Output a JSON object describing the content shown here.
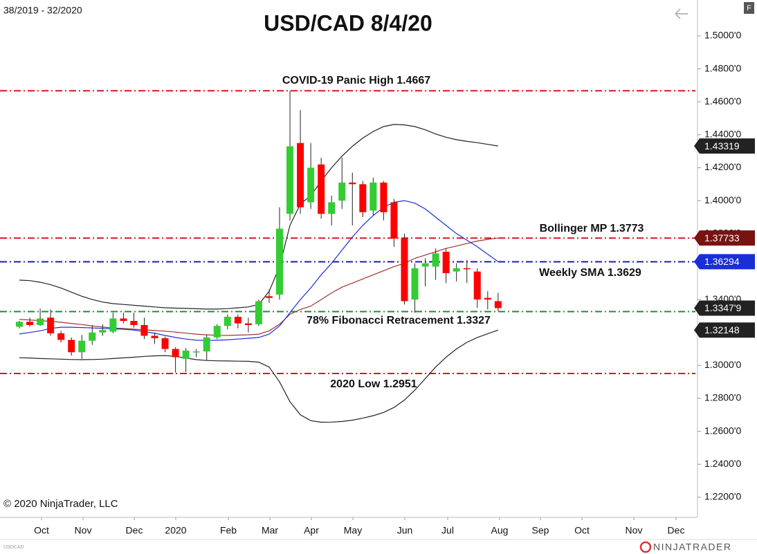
{
  "chart_data": {
    "type": "candlestick",
    "title": "USD/CAD 8/4/20",
    "subtitle": "38/2019 - 32/2020",
    "up_color": "#33cc33",
    "down_color": "#ff0000",
    "open": [
      1.3235,
      1.3265,
      1.3245,
      1.329,
      1.3195,
      1.3155,
      1.308,
      1.315,
      1.32,
      1.3205,
      1.3285,
      1.327,
      1.3245,
      1.318,
      1.3165,
      1.31,
      1.304,
      1.308,
      1.3085,
      1.317,
      1.324,
      1.3295,
      1.3255,
      1.325,
      1.342,
      1.343,
      1.392,
      1.435,
      1.399,
      1.422,
      1.392,
      1.4,
      1.411,
      1.41,
      1.394,
      1.411,
      1.399,
      1.377,
      1.34,
      1.36,
      1.36,
      1.369,
      1.357,
      1.359,
      1.357,
      1.341,
      1.339
    ],
    "high": [
      1.327,
      1.329,
      1.3345,
      1.334,
      1.321,
      1.317,
      1.3185,
      1.3245,
      1.325,
      1.332,
      1.332,
      1.332,
      1.329,
      1.32,
      1.3175,
      1.311,
      1.3105,
      1.31,
      1.3185,
      1.325,
      1.331,
      1.331,
      1.329,
      1.34,
      1.346,
      1.396,
      1.4667,
      1.455,
      1.435,
      1.426,
      1.403,
      1.426,
      1.417,
      1.412,
      1.414,
      1.412,
      1.401,
      1.38,
      1.362,
      1.365,
      1.371,
      1.371,
      1.362,
      1.364,
      1.359,
      1.345,
      1.344
    ],
    "low": [
      1.3225,
      1.3235,
      1.324,
      1.318,
      1.314,
      1.306,
      1.304,
      1.3125,
      1.318,
      1.3195,
      1.3255,
      1.323,
      1.316,
      1.313,
      1.308,
      1.2957,
      1.296,
      1.305,
      1.303,
      1.316,
      1.322,
      1.3225,
      1.32,
      1.324,
      1.338,
      1.34,
      1.388,
      1.392,
      1.395,
      1.389,
      1.385,
      1.395,
      1.385,
      1.39,
      1.391,
      1.388,
      1.372,
      1.337,
      1.332,
      1.348,
      1.352,
      1.35,
      1.351,
      1.35,
      1.335,
      1.334,
      1.333
    ],
    "close": [
      1.3265,
      1.3245,
      1.3285,
      1.3195,
      1.3155,
      1.308,
      1.315,
      1.32,
      1.3215,
      1.3285,
      1.327,
      1.3245,
      1.318,
      1.3165,
      1.31,
      1.305,
      1.309,
      1.3085,
      1.317,
      1.324,
      1.3295,
      1.3255,
      1.3245,
      1.339,
      1.341,
      1.383,
      1.433,
      1.396,
      1.42,
      1.392,
      1.399,
      1.411,
      1.41,
      1.393,
      1.411,
      1.393,
      1.377,
      1.339,
      1.359,
      1.362,
      1.368,
      1.356,
      1.359,
      1.3585,
      1.34,
      1.34,
      1.33479
    ],
    "overlays": [
      {
        "color": "#222222",
        "values": [
          1.3518,
          1.3515,
          1.3505,
          1.349,
          1.347,
          1.3445,
          1.342,
          1.34,
          1.3385,
          1.3375,
          1.337,
          1.3365,
          1.336,
          1.3355,
          1.335,
          1.3348,
          1.3346,
          1.3344,
          1.3342,
          1.3342,
          1.3345,
          1.335,
          1.3355,
          1.337,
          1.345,
          1.36,
          1.385,
          1.398,
          1.403,
          1.412,
          1.42,
          1.427,
          1.433,
          1.438,
          1.442,
          1.445,
          1.4463,
          1.446,
          1.445,
          1.443,
          1.4405,
          1.4385,
          1.437,
          1.436,
          1.4352,
          1.4342,
          1.43319
        ]
      },
      {
        "color": "#222222",
        "values": [
          1.3047,
          1.3045,
          1.3042,
          1.304,
          1.3038,
          1.3036,
          1.3035,
          1.3036,
          1.3038,
          1.3042,
          1.3046,
          1.305,
          1.3055,
          1.3058,
          1.306,
          1.3055,
          1.3045,
          1.3035,
          1.303,
          1.3028,
          1.3027,
          1.3026,
          1.3025,
          1.302,
          1.299,
          1.29,
          1.278,
          1.27,
          1.2665,
          1.2655,
          1.2656,
          1.266,
          1.2668,
          1.268,
          1.2695,
          1.2715,
          1.2745,
          1.279,
          1.285,
          1.292,
          1.299,
          1.305,
          1.31,
          1.314,
          1.317,
          1.3192,
          1.32148
        ]
      },
      {
        "color": "#a0322a",
        "values": [
          1.3279,
          1.3276,
          1.3272,
          1.3268,
          1.3262,
          1.3255,
          1.3248,
          1.324,
          1.3233,
          1.3228,
          1.3224,
          1.322,
          1.3216,
          1.3212,
          1.3208,
          1.3202,
          1.3196,
          1.319,
          1.3186,
          1.3183,
          1.3182,
          1.3184,
          1.3186,
          1.319,
          1.321,
          1.325,
          1.331,
          1.334,
          1.336,
          1.34,
          1.344,
          1.3475,
          1.35,
          1.3525,
          1.355,
          1.3575,
          1.36,
          1.362,
          1.365,
          1.367,
          1.369,
          1.371,
          1.3725,
          1.374,
          1.3755,
          1.3765,
          1.37733
        ]
      },
      {
        "color": "#1a2ed6",
        "values": [
          1.3191,
          1.32,
          1.321,
          1.3225,
          1.3232,
          1.3232,
          1.323,
          1.3228,
          1.3225,
          1.3222,
          1.322,
          1.3215,
          1.3205,
          1.3195,
          1.3182,
          1.317,
          1.316,
          1.3153,
          1.3152,
          1.3153,
          1.3155,
          1.316,
          1.3165,
          1.317,
          1.319,
          1.324,
          1.332,
          1.34,
          1.347,
          1.355,
          1.362,
          1.37,
          1.378,
          1.385,
          1.391,
          1.396,
          1.399,
          1.4,
          1.3985,
          1.395,
          1.39,
          1.385,
          1.38,
          1.376,
          1.372,
          1.3675,
          1.36294
        ]
      }
    ],
    "levels": [
      {
        "value": 1.4667,
        "label": "COVID-19 Panic High 1.4667",
        "color": "#e0111b"
      },
      {
        "value": 1.3773,
        "label": "Bollinger MP 1.3773",
        "color": "#e0111b"
      },
      {
        "value": 1.3629,
        "label": "Weekly SMA 1.3629",
        "color": "#1a1ab8"
      },
      {
        "value": 1.3327,
        "label": "78% Fibonacci Retracement 1.3327",
        "color": "#1e8a3c"
      },
      {
        "value": 1.2951,
        "label": "2020 Low 1.2951",
        "color": "#e0111b"
      }
    ],
    "price_tags": [
      {
        "value": 1.43319,
        "label": "1.43319",
        "color": "#222222"
      },
      {
        "value": 1.37733,
        "label": "1.37733",
        "color": "#7a1212"
      },
      {
        "value": 1.36294,
        "label": "1.36294",
        "color": "#1a2ed6"
      },
      {
        "value": 1.33479,
        "label": "1.3347'9",
        "color": "#222222"
      },
      {
        "value": 1.32148,
        "label": "1.32148",
        "color": "#222222"
      }
    ],
    "x_labels": [
      "Oct",
      "Nov",
      "Dec",
      "2020",
      "Feb",
      "Mar",
      "Apr",
      "May",
      "Jun",
      "Jul",
      "Aug",
      "Sep",
      "Oct",
      "Nov",
      "Dec"
    ],
    "ylim": [
      1.2078,
      1.5218
    ],
    "yticks": [
      {
        "value": 1.5,
        "label": "1.5000'0"
      },
      {
        "value": 1.48,
        "label": "1.4800'0"
      },
      {
        "value": 1.46,
        "label": "1.4600'0"
      },
      {
        "value": 1.44,
        "label": "1.4400'0"
      },
      {
        "value": 1.42,
        "label": "1.4200'0"
      },
      {
        "value": 1.4,
        "label": "1.4000'0"
      },
      {
        "value": 1.38,
        "label": "1.3800'0"
      },
      {
        "value": 1.36,
        "label": "1.3600'0"
      },
      {
        "value": 1.34,
        "label": "1.3400'0"
      },
      {
        "value": 1.32,
        "label": "1.3200'0"
      },
      {
        "value": 1.3,
        "label": "1.3000'0"
      },
      {
        "value": 1.28,
        "label": "1.2800'0"
      },
      {
        "value": 1.26,
        "label": "1.2600'0"
      },
      {
        "value": 1.24,
        "label": "1.2400'0"
      },
      {
        "value": 1.22,
        "label": "1.2200'0"
      }
    ]
  },
  "footer": {
    "copyright": "© 2020 NinjaTrader, LLC",
    "symbol": "USDCAD",
    "brand": "NINJATRADER",
    "menu": "F"
  }
}
